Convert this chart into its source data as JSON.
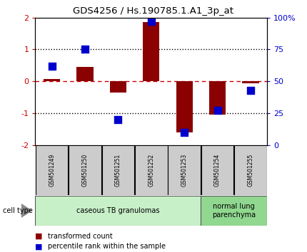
{
  "title": "GDS4256 / Hs.190785.1.A1_3p_at",
  "samples": [
    "GSM501249",
    "GSM501250",
    "GSM501251",
    "GSM501252",
    "GSM501253",
    "GSM501254",
    "GSM501255"
  ],
  "transformed_counts": [
    0.07,
    0.45,
    -0.35,
    1.85,
    -1.6,
    -1.05,
    -0.07
  ],
  "percentile_ranks_pct": [
    62,
    75,
    20,
    97,
    10,
    27,
    43
  ],
  "ylim": [
    -2,
    2
  ],
  "right_ylim": [
    0,
    100
  ],
  "right_yticks": [
    0,
    25,
    50,
    75,
    100
  ],
  "right_yticklabels": [
    "0",
    "25",
    "50",
    "75",
    "100%"
  ],
  "left_yticks": [
    -2,
    -1,
    0,
    1,
    2
  ],
  "dotted_lines_black": [
    -1,
    1
  ],
  "dashed_line_red": 0,
  "bar_color": "#8B0000",
  "dot_color": "#0000CC",
  "bar_width": 0.5,
  "dot_size": 55,
  "cell_types": [
    {
      "label": "caseous TB granulomas",
      "samples": [
        0,
        1,
        2,
        3,
        4
      ],
      "color": "#c8f0c8"
    },
    {
      "label": "normal lung\nparenchyma",
      "samples": [
        5,
        6
      ],
      "color": "#90d890"
    }
  ],
  "legend_bar_label": "transformed count",
  "legend_dot_label": "percentile rank within the sample",
  "cell_type_label": "cell type",
  "background_color": "#ffffff",
  "plot_bg_color": "#ffffff",
  "tick_label_color_left": "#cc0000",
  "tick_label_color_right": "#0000CC",
  "dashed_line_color": "#cc0000",
  "sample_box_color": "#cccccc",
  "arrow_color": "#888888"
}
